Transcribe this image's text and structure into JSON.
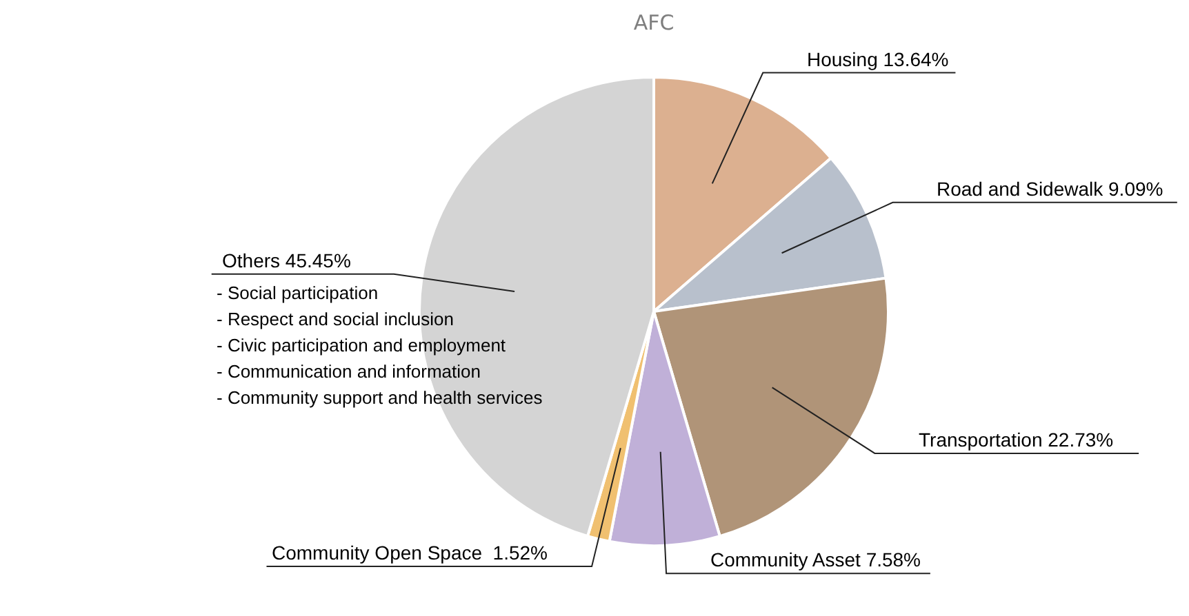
{
  "chart_data": {
    "type": "pie",
    "title": "AFC",
    "categories": [
      "Housing",
      "Road and Sidewalk",
      "Transportation",
      "Community Asset",
      "Community Open Space ",
      "Others"
    ],
    "values": [
      13.64,
      9.09,
      22.73,
      7.58,
      1.52,
      45.45
    ],
    "value_labels": [
      "13.64%",
      "9.09%",
      "22.73%",
      "7.58%",
      "1.52%",
      "45.45%"
    ],
    "colors": [
      "#dcb090",
      "#b8c0cc",
      "#b09478",
      "#c0b0d8",
      "#f0c070",
      "#d4d4d4"
    ],
    "annotations": [
      "- Social participation",
      "- Respect and social inclusion",
      "- Civic participation and employment",
      "- Communication and information",
      "- Community support and health services"
    ]
  }
}
